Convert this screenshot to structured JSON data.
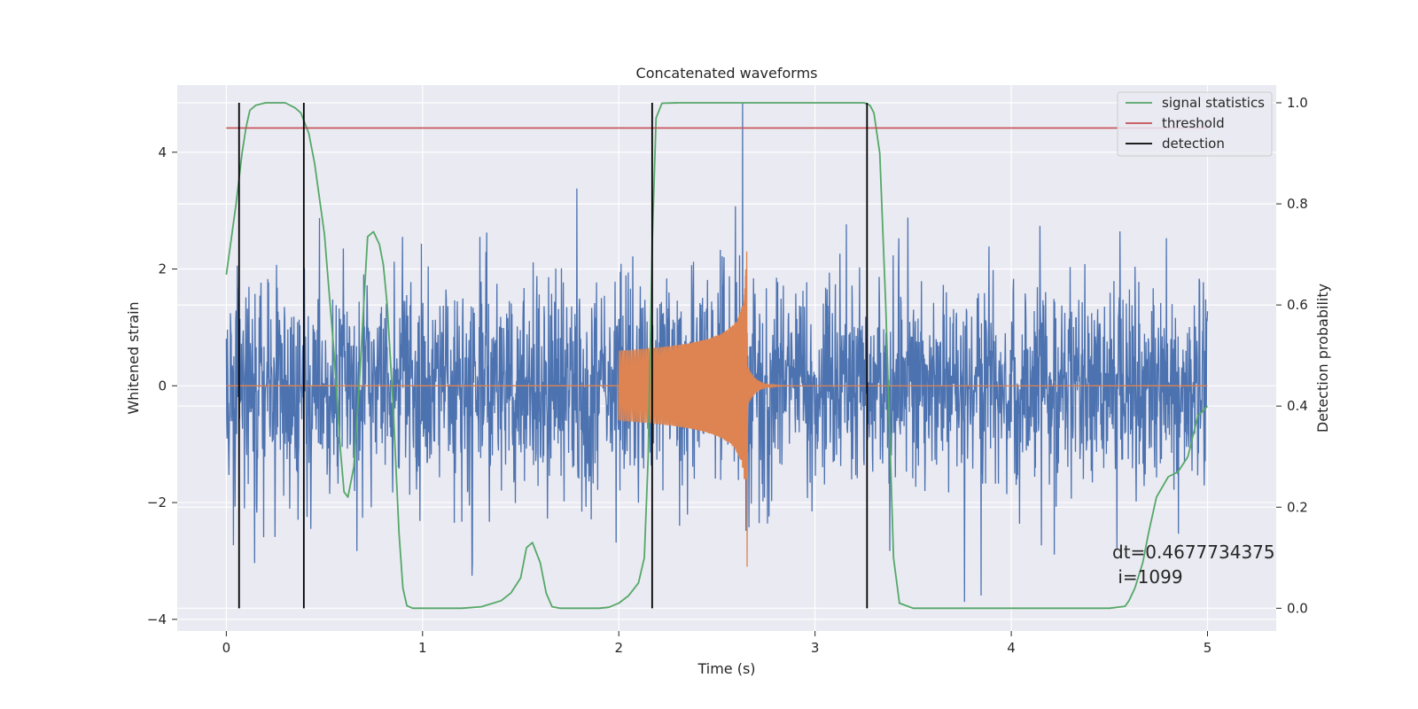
{
  "chart_data": {
    "type": "line",
    "title": "Concatenated waveforms",
    "xlabel": "Time (s)",
    "ylabel": "Whitened strain",
    "y2label": "Detection probability",
    "xlim": [
      -0.25,
      5.35
    ],
    "ylim": [
      -4.2,
      5.15
    ],
    "y2lim": [
      -0.045,
      1.035
    ],
    "xticks": [
      0,
      1,
      2,
      3,
      4,
      5
    ],
    "yticks": [
      -4,
      -2,
      0,
      2,
      4
    ],
    "y2ticks": [
      0.0,
      0.2,
      0.4,
      0.6,
      0.8,
      1.0
    ],
    "xtick_labels": [
      "0",
      "1",
      "2",
      "3",
      "4",
      "5"
    ],
    "ytick_labels": [
      "−4",
      "−2",
      "0",
      "2",
      "4"
    ],
    "y2tick_labels": [
      "0.0",
      "0.2",
      "0.4",
      "0.6",
      "0.8",
      "1.0"
    ],
    "grid": true,
    "legend_position": "top-right",
    "noise": {
      "color": "#4c72b0",
      "x_range": [
        0,
        5
      ],
      "typical_amplitude": 1.4,
      "peak_max": 4.85,
      "peak_min": -3.7
    },
    "chirp": {
      "color": "#dd8452",
      "start": 2.0,
      "merger": 2.65,
      "start_amplitude": 0.6,
      "peak_max": 2.3,
      "peak_min": -3.1
    },
    "series": [
      {
        "name": "signal statistics",
        "color": "#55a868",
        "axis": "right",
        "x": [
          0.0,
          0.05,
          0.08,
          0.1,
          0.12,
          0.15,
          0.2,
          0.3,
          0.35,
          0.38,
          0.4,
          0.42,
          0.45,
          0.5,
          0.55,
          0.58,
          0.6,
          0.62,
          0.65,
          0.68,
          0.7,
          0.72,
          0.75,
          0.78,
          0.8,
          0.82,
          0.85,
          0.88,
          0.9,
          0.92,
          0.95,
          1.0,
          1.2,
          1.3,
          1.4,
          1.45,
          1.5,
          1.53,
          1.56,
          1.6,
          1.63,
          1.66,
          1.7,
          1.8,
          1.9,
          1.95,
          2.0,
          2.05,
          2.1,
          2.13,
          2.15,
          2.17,
          2.19,
          2.22,
          2.3,
          2.5,
          3.0,
          3.2,
          3.25,
          3.28,
          3.3,
          3.33,
          3.36,
          3.4,
          3.43,
          3.5,
          4.0,
          4.5,
          4.58,
          4.6,
          4.63,
          4.67,
          4.7,
          4.74,
          4.8,
          4.85,
          4.9,
          4.95,
          5.0
        ],
        "y": [
          0.66,
          0.8,
          0.9,
          0.95,
          0.985,
          0.995,
          1.0,
          1.0,
          0.99,
          0.98,
          0.96,
          0.94,
          0.88,
          0.74,
          0.5,
          0.32,
          0.23,
          0.22,
          0.28,
          0.46,
          0.6,
          0.735,
          0.745,
          0.72,
          0.68,
          0.6,
          0.4,
          0.15,
          0.04,
          0.005,
          0.0,
          0.0,
          0.0,
          0.003,
          0.015,
          0.03,
          0.06,
          0.12,
          0.13,
          0.09,
          0.03,
          0.003,
          0.0,
          0.0,
          0.0,
          0.002,
          0.01,
          0.025,
          0.05,
          0.1,
          0.3,
          0.72,
          0.97,
          0.999,
          1.0,
          1.0,
          1.0,
          1.0,
          1.0,
          0.995,
          0.98,
          0.9,
          0.6,
          0.1,
          0.01,
          0.0,
          0.0,
          0.0,
          0.004,
          0.015,
          0.04,
          0.09,
          0.15,
          0.22,
          0.26,
          0.27,
          0.3,
          0.38,
          0.4
        ]
      },
      {
        "name": "threshold",
        "color": "#c44e52",
        "axis": "right",
        "x": [
          0,
          5
        ],
        "y": [
          0.95,
          0.95
        ]
      },
      {
        "name": "detection",
        "color": "#000000",
        "axis": "right",
        "x": [
          0.065,
          0.395,
          2.17,
          3.265
        ],
        "y_range": [
          0,
          1
        ]
      }
    ],
    "annotation": {
      "line1": "dt=0.4677734375",
      "line2": " i=1099",
      "x": 4.5,
      "y": -2.55
    }
  }
}
